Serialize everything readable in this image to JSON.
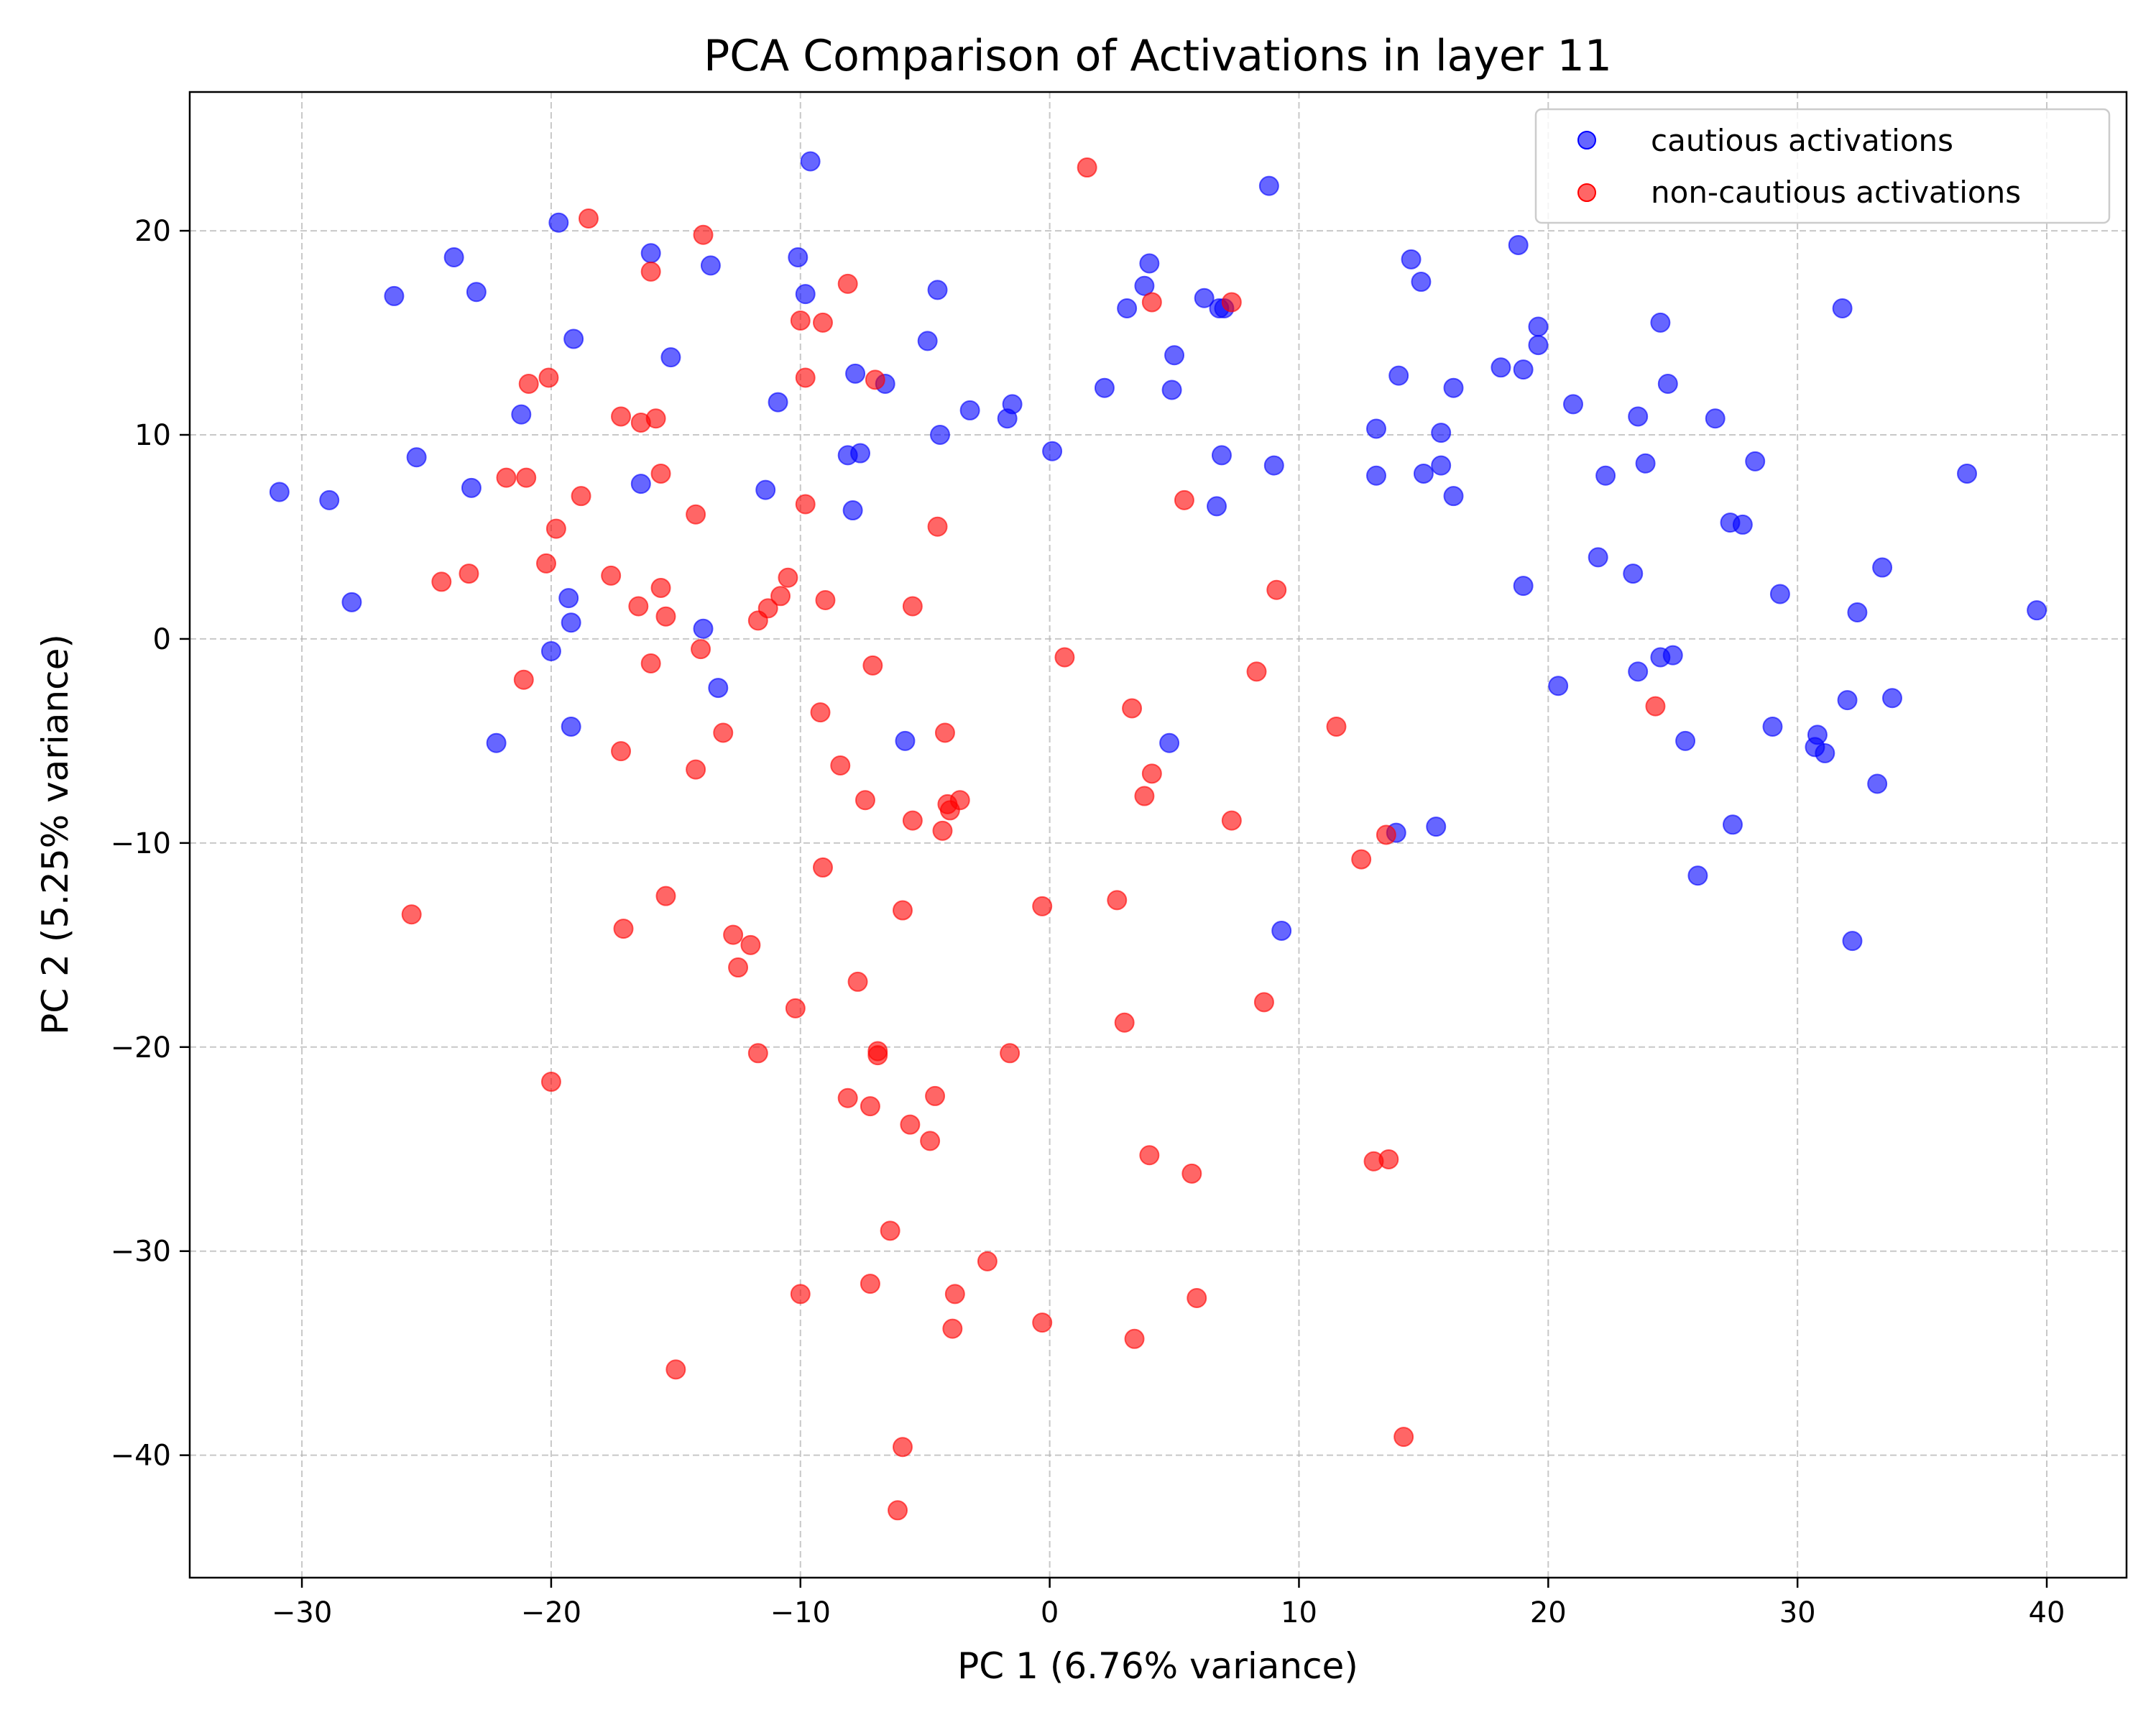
{
  "chart_data": {
    "type": "scatter",
    "title": "PCA Comparison of Activations in layer 11",
    "xlabel": "PC 1 (6.76% variance)",
    "ylabel": "PC 2 (5.25% variance)",
    "xlim": [
      -34.5,
      43.2
    ],
    "ylim": [
      -46,
      26.8
    ],
    "xticks": [
      -30,
      -20,
      -10,
      0,
      10,
      20,
      30,
      40
    ],
    "yticks": [
      -40,
      -30,
      -20,
      -10,
      0,
      10,
      20
    ],
    "xtick_labels": [
      "−30",
      "−20",
      "−10",
      "0",
      "10",
      "20",
      "30",
      "40"
    ],
    "ytick_labels": [
      "−40",
      "−30",
      "−20",
      "−10",
      "0",
      "10",
      "20"
    ],
    "grid": true,
    "legend_position": "top-right",
    "series": [
      {
        "name": "cautious activations",
        "color": "#0000ff",
        "alpha": 0.6,
        "points": [
          [
            -30.9,
            7.2
          ],
          [
            -28.9,
            6.8
          ],
          [
            -28.0,
            1.8
          ],
          [
            -26.3,
            16.8
          ],
          [
            -25.4,
            8.9
          ],
          [
            -23.9,
            18.7
          ],
          [
            -23.2,
            7.4
          ],
          [
            -23.0,
            17.0
          ],
          [
            -22.2,
            -5.1
          ],
          [
            -21.2,
            11.0
          ],
          [
            -19.7,
            20.4
          ],
          [
            -19.3,
            2.0
          ],
          [
            -19.1,
            14.7
          ],
          [
            -19.2,
            0.8
          ],
          [
            -20.0,
            -0.6
          ],
          [
            -19.2,
            -4.3
          ],
          [
            -16.4,
            7.6
          ],
          [
            -16.0,
            18.9
          ],
          [
            -15.2,
            13.8
          ],
          [
            -13.9,
            0.5
          ],
          [
            -13.6,
            18.3
          ],
          [
            -13.3,
            -2.4
          ],
          [
            -11.4,
            7.3
          ],
          [
            -10.9,
            11.6
          ],
          [
            -10.1,
            18.7
          ],
          [
            -9.8,
            16.9
          ],
          [
            -9.6,
            23.4
          ],
          [
            -8.1,
            9.0
          ],
          [
            -7.9,
            6.3
          ],
          [
            -7.8,
            13.0
          ],
          [
            -7.6,
            9.1
          ],
          [
            -6.6,
            12.5
          ],
          [
            -5.8,
            -5.0
          ],
          [
            -4.9,
            14.6
          ],
          [
            -4.5,
            17.1
          ],
          [
            -4.4,
            10.0
          ],
          [
            -3.2,
            11.2
          ],
          [
            -1.7,
            10.8
          ],
          [
            -1.5,
            11.5
          ],
          [
            0.1,
            9.2
          ],
          [
            2.2,
            12.3
          ],
          [
            3.1,
            16.2
          ],
          [
            3.8,
            17.3
          ],
          [
            4.0,
            18.4
          ],
          [
            5.0,
            13.9
          ],
          [
            4.9,
            12.2
          ],
          [
            4.8,
            -5.1
          ],
          [
            6.2,
            16.7
          ],
          [
            6.7,
            6.5
          ],
          [
            6.9,
            9.0
          ],
          [
            6.8,
            16.2
          ],
          [
            7.0,
            16.2
          ],
          [
            8.8,
            22.2
          ],
          [
            9.0,
            8.5
          ],
          [
            9.3,
            -14.3
          ],
          [
            13.1,
            10.3
          ],
          [
            13.1,
            8.0
          ],
          [
            14.0,
            12.9
          ],
          [
            13.9,
            -9.5
          ],
          [
            14.5,
            18.6
          ],
          [
            14.9,
            17.5
          ],
          [
            15.0,
            8.1
          ],
          [
            15.5,
            -9.2
          ],
          [
            15.7,
            10.1
          ],
          [
            15.7,
            8.5
          ],
          [
            16.2,
            12.3
          ],
          [
            16.2,
            7.0
          ],
          [
            18.1,
            13.3
          ],
          [
            18.8,
            19.3
          ],
          [
            19.0,
            13.2
          ],
          [
            19.0,
            2.6
          ],
          [
            19.6,
            15.3
          ],
          [
            19.6,
            14.4
          ],
          [
            20.4,
            -2.3
          ],
          [
            21.0,
            11.5
          ],
          [
            22.0,
            4.0
          ],
          [
            22.3,
            8.0
          ],
          [
            23.4,
            3.2
          ],
          [
            23.6,
            10.9
          ],
          [
            23.6,
            -1.6
          ],
          [
            23.9,
            8.6
          ],
          [
            24.5,
            15.5
          ],
          [
            24.5,
            -0.9
          ],
          [
            24.8,
            12.5
          ],
          [
            25.0,
            -0.8
          ],
          [
            25.5,
            -5.0
          ],
          [
            26.0,
            -11.6
          ],
          [
            26.7,
            10.8
          ],
          [
            27.3,
            5.7
          ],
          [
            27.4,
            -9.1
          ],
          [
            27.8,
            5.6
          ],
          [
            28.3,
            8.7
          ],
          [
            29.0,
            -4.3
          ],
          [
            29.3,
            2.2
          ],
          [
            30.7,
            -5.3
          ],
          [
            30.8,
            -4.7
          ],
          [
            31.1,
            -5.6
          ],
          [
            31.8,
            16.2
          ],
          [
            32.0,
            -3.0
          ],
          [
            32.2,
            -14.8
          ],
          [
            32.4,
            1.3
          ],
          [
            33.2,
            -7.1
          ],
          [
            33.4,
            3.5
          ],
          [
            33.8,
            -2.9
          ],
          [
            36.8,
            8.1
          ],
          [
            39.6,
            1.4
          ]
        ]
      },
      {
        "name": "non-cautious activations",
        "color": "#ff0000",
        "alpha": 0.6,
        "points": [
          [
            -25.6,
            -13.5
          ],
          [
            -24.4,
            2.8
          ],
          [
            -23.3,
            3.2
          ],
          [
            -21.8,
            7.9
          ],
          [
            -21.0,
            7.9
          ],
          [
            -20.9,
            12.5
          ],
          [
            -21.1,
            -2.0
          ],
          [
            -20.2,
            3.7
          ],
          [
            -20.1,
            12.8
          ],
          [
            -20.0,
            -21.7
          ],
          [
            -19.8,
            5.4
          ],
          [
            -18.8,
            7.0
          ],
          [
            -18.5,
            20.6
          ],
          [
            -17.6,
            3.1
          ],
          [
            -17.2,
            10.9
          ],
          [
            -17.2,
            -5.5
          ],
          [
            -17.1,
            -14.2
          ],
          [
            -16.5,
            1.6
          ],
          [
            -16.4,
            10.6
          ],
          [
            -16.0,
            18.0
          ],
          [
            -16.0,
            -1.2
          ],
          [
            -15.8,
            10.8
          ],
          [
            -15.6,
            8.1
          ],
          [
            -15.6,
            2.5
          ],
          [
            -15.4,
            1.1
          ],
          [
            -15.4,
            -12.6
          ],
          [
            -15.0,
            -35.8
          ],
          [
            -14.2,
            6.1
          ],
          [
            -14.2,
            -6.4
          ],
          [
            -14.0,
            -0.5
          ],
          [
            -13.9,
            19.8
          ],
          [
            -13.1,
            -4.6
          ],
          [
            -12.7,
            -14.5
          ],
          [
            -12.5,
            -16.1
          ],
          [
            -12.0,
            -15.0
          ],
          [
            -11.7,
            -20.3
          ],
          [
            -11.7,
            0.9
          ],
          [
            -11.3,
            1.5
          ],
          [
            -10.8,
            2.1
          ],
          [
            -10.5,
            3.0
          ],
          [
            -10.2,
            -18.1
          ],
          [
            -10.0,
            15.6
          ],
          [
            -10.0,
            -32.1
          ],
          [
            -9.8,
            12.8
          ],
          [
            -9.8,
            6.6
          ],
          [
            -9.2,
            -3.6
          ],
          [
            -9.1,
            15.5
          ],
          [
            -9.0,
            1.9
          ],
          [
            -9.1,
            -11.2
          ],
          [
            -8.4,
            -6.2
          ],
          [
            -8.1,
            17.4
          ],
          [
            -8.1,
            -22.5
          ],
          [
            -7.7,
            -16.8
          ],
          [
            -7.4,
            -7.9
          ],
          [
            -7.2,
            -22.9
          ],
          [
            -7.2,
            -31.6
          ],
          [
            -7.1,
            -1.3
          ],
          [
            -7.0,
            12.7
          ],
          [
            -6.9,
            -20.2
          ],
          [
            -6.9,
            -20.4
          ],
          [
            -6.4,
            -29.0
          ],
          [
            -6.1,
            -42.7
          ],
          [
            -5.9,
            -39.6
          ],
          [
            -5.9,
            -13.3
          ],
          [
            -5.6,
            -23.8
          ],
          [
            -5.5,
            -8.9
          ],
          [
            -5.5,
            1.6
          ],
          [
            -4.8,
            -24.6
          ],
          [
            -4.6,
            -22.4
          ],
          [
            -4.5,
            5.5
          ],
          [
            -4.3,
            -9.4
          ],
          [
            -4.2,
            -4.6
          ],
          [
            -4.1,
            -8.1
          ],
          [
            -4.0,
            -8.4
          ],
          [
            -3.9,
            -33.8
          ],
          [
            -3.8,
            -32.1
          ],
          [
            -3.6,
            -7.9
          ],
          [
            -2.5,
            -30.5
          ],
          [
            -1.6,
            -20.3
          ],
          [
            -0.3,
            -33.5
          ],
          [
            -0.3,
            -13.1
          ],
          [
            0.6,
            -0.9
          ],
          [
            1.5,
            23.1
          ],
          [
            2.7,
            -12.8
          ],
          [
            3.0,
            -18.8
          ],
          [
            3.3,
            -3.4
          ],
          [
            3.4,
            -34.3
          ],
          [
            3.8,
            -7.7
          ],
          [
            4.0,
            -25.3
          ],
          [
            4.1,
            -6.6
          ],
          [
            4.1,
            16.5
          ],
          [
            5.4,
            6.8
          ],
          [
            5.7,
            -26.2
          ],
          [
            5.9,
            -32.3
          ],
          [
            7.3,
            16.5
          ],
          [
            7.3,
            -8.9
          ],
          [
            8.3,
            -1.6
          ],
          [
            8.6,
            -17.8
          ],
          [
            9.1,
            2.4
          ],
          [
            11.5,
            -4.3
          ],
          [
            12.5,
            -10.8
          ],
          [
            13.0,
            -25.6
          ],
          [
            13.5,
            -9.6
          ],
          [
            13.6,
            -25.5
          ],
          [
            14.2,
            -39.1
          ],
          [
            24.3,
            -3.3
          ]
        ]
      }
    ]
  }
}
